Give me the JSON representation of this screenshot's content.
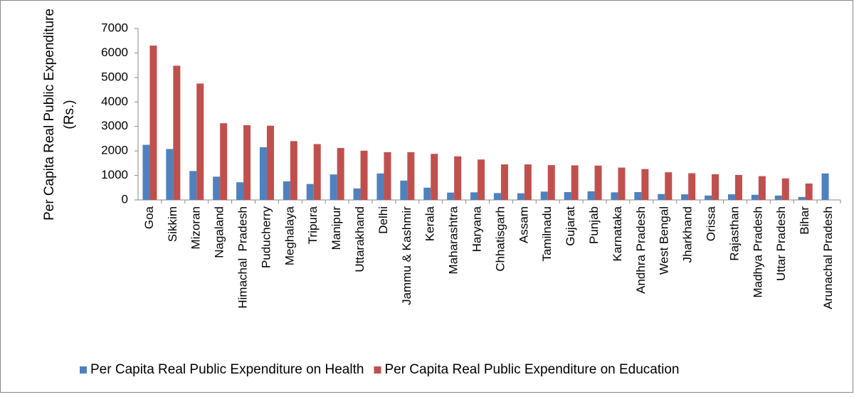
{
  "chart_data": {
    "type": "bar",
    "y_label": [
      "Per Capita Real Public Expenditure",
      "(Rs.)"
    ],
    "categories": [
      "Goa",
      "Sikkim",
      "Mizoran",
      "Nagaland",
      "Himachal  Pradesh",
      "Puducherry",
      "Meghalaya",
      "Tripura",
      "Manipur",
      "Uttarakhand",
      "Delhi",
      "Jammu & Kashmir",
      "Kerala",
      "Maharashtra",
      "Haryana",
      "Chhatisgarh",
      "Assam",
      "Tamilnadu",
      "Gujarat",
      "Punjab",
      "Karnataka",
      "Andhra Pradesh",
      "West Bengal",
      "Jharkhand",
      "Orissa",
      "Rajasthan",
      "Madhya Pradesh",
      "Uttar Pradesh",
      "Bihar",
      "Arunachal Pradesh"
    ],
    "series": [
      {
        "name": "Per Capita Real Public Expenditure on Health",
        "color": "#4f81bd",
        "values": [
          2250,
          2080,
          1180,
          950,
          720,
          2150,
          760,
          650,
          1040,
          470,
          1080,
          790,
          500,
          300,
          310,
          280,
          270,
          340,
          320,
          350,
          310,
          320,
          240,
          230,
          180,
          230,
          210,
          180,
          120,
          1080
        ]
      },
      {
        "name": "Per Capita Real Public Expenditure on Education",
        "color": "#c0504d",
        "values": [
          6300,
          5480,
          4750,
          3130,
          3050,
          3030,
          2400,
          2280,
          2120,
          2010,
          1950,
          1950,
          1880,
          1780,
          1650,
          1450,
          1450,
          1420,
          1410,
          1400,
          1320,
          1260,
          1130,
          1090,
          1050,
          1020,
          970,
          880,
          670,
          null
        ]
      }
    ],
    "ylim": [
      0,
      7000
    ],
    "yticks": [
      0,
      1000,
      2000,
      3000,
      4000,
      5000,
      6000,
      7000
    ],
    "grid": false,
    "legend": "bottom"
  }
}
